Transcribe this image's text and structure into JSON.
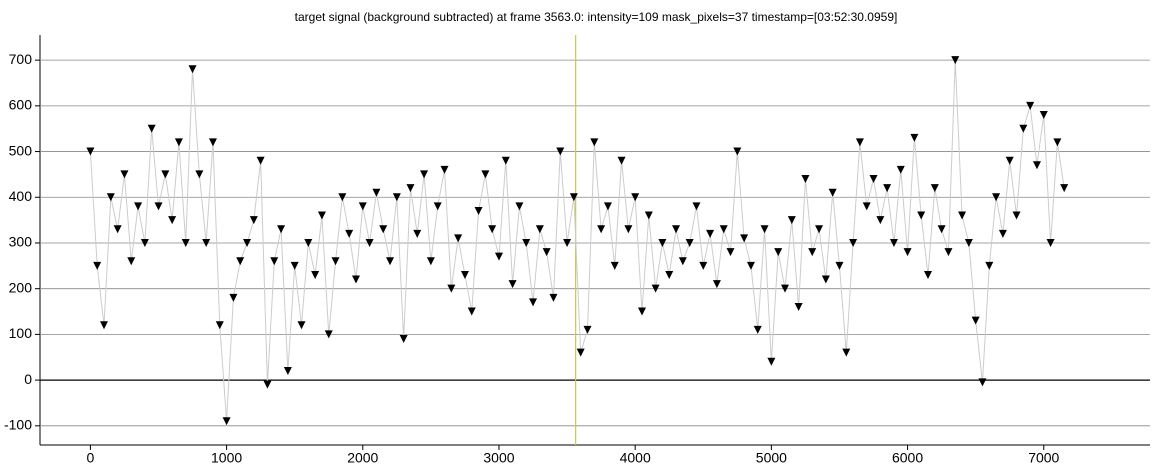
{
  "chart_data": {
    "type": "scatter",
    "title": "target signal (background subtracted) at frame 3563.0: intensity=109 mask_pixels=37 timestamp=[03:52:30.0959]",
    "x": [
      0,
      50,
      100,
      150,
      200,
      250,
      300,
      350,
      400,
      450,
      500,
      550,
      600,
      650,
      700,
      750,
      800,
      850,
      900,
      950,
      1000,
      1050,
      1100,
      1150,
      1200,
      1250,
      1300,
      1350,
      1400,
      1450,
      1500,
      1550,
      1600,
      1650,
      1700,
      1750,
      1800,
      1850,
      1900,
      1950,
      2000,
      2050,
      2100,
      2150,
      2200,
      2250,
      2300,
      2350,
      2400,
      2450,
      2500,
      2550,
      2600,
      2650,
      2700,
      2750,
      2800,
      2850,
      2900,
      2950,
      3000,
      3050,
      3100,
      3150,
      3200,
      3250,
      3300,
      3350,
      3400,
      3450,
      3500,
      3550,
      3600,
      3650,
      3700,
      3750,
      3800,
      3850,
      3900,
      3950,
      4000,
      4050,
      4100,
      4150,
      4200,
      4250,
      4300,
      4350,
      4400,
      4450,
      4500,
      4550,
      4600,
      4650,
      4700,
      4750,
      4800,
      4850,
      4900,
      4950,
      5000,
      5050,
      5100,
      5150,
      5200,
      5250,
      5300,
      5350,
      5400,
      5450,
      5500,
      5550,
      5600,
      5650,
      5700,
      5750,
      5800,
      5850,
      5900,
      5950,
      6000,
      6050,
      6100,
      6150,
      6200,
      6250,
      6300,
      6350,
      6400,
      6450,
      6500,
      6550,
      6600,
      6650,
      6700,
      6750,
      6800,
      6850,
      6900,
      6950,
      7000,
      7050,
      7100,
      7150
    ],
    "series": [
      {
        "color": "#000000",
        "line_color": "#cccccc",
        "values": [
          500,
          250,
          120,
          400,
          330,
          450,
          260,
          380,
          300,
          550,
          380,
          450,
          350,
          520,
          300,
          680,
          450,
          300,
          520,
          120,
          -90,
          180,
          260,
          300,
          350,
          480,
          -10,
          260,
          330,
          20,
          250,
          120,
          300,
          230,
          360,
          100,
          260,
          400,
          320,
          220,
          380,
          300,
          410,
          330,
          260,
          400,
          90,
          420,
          320,
          450,
          260,
          380,
          460,
          200,
          310,
          230,
          150,
          370,
          450,
          330,
          270,
          480,
          210,
          380,
          300,
          170,
          330,
          280,
          180,
          500,
          300,
          400,
          60,
          110,
          520,
          330,
          380,
          250,
          480,
          330,
          400,
          150,
          360,
          200,
          300,
          230,
          330,
          260,
          300,
          380,
          250,
          320,
          210,
          330,
          280,
          500,
          310,
          250,
          110,
          330,
          40,
          280,
          200,
          350,
          160,
          440,
          280,
          330,
          220,
          410,
          250,
          60,
          300,
          520,
          380,
          440,
          350,
          420,
          300,
          460,
          280,
          530,
          360,
          230,
          420,
          330,
          280,
          700,
          360,
          300,
          130,
          -5,
          250,
          400,
          320,
          480,
          360,
          550,
          600,
          470,
          580,
          300,
          520,
          420
        ]
      }
    ],
    "xlim": [
      -370,
      7780
    ],
    "ylim": [
      -142,
      755
    ],
    "xticks": [
      0,
      1000,
      2000,
      3000,
      4000,
      5000,
      6000,
      7000
    ],
    "yticks": [
      -100,
      0,
      100,
      200,
      300,
      400,
      500,
      600,
      700
    ],
    "grid": true,
    "grid_color": "#888888",
    "hline": 0,
    "hline_color": "#000000",
    "vline": 3563,
    "vline_color": "#c8c850"
  }
}
